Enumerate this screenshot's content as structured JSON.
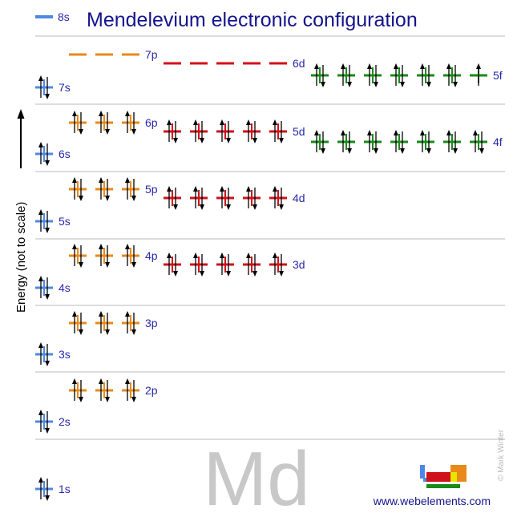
{
  "title": "Mendelevium electronic configuration",
  "y_axis_label": "Energy (not to scale)",
  "element_symbol": "Md",
  "website": "www.webelements.com",
  "copyright": "© Mark Winter",
  "legend": {
    "label": "8s",
    "filled": false
  },
  "colors": {
    "s": "#4d88e6",
    "p": "#e88a1a",
    "d": "#d0101a",
    "f": "#1a8a1a",
    "label": "#2828aa",
    "title": "#14148c",
    "separator": "#bbbbbb",
    "symbol": "#c8c8c8"
  },
  "subshells": [
    {
      "name": "1s",
      "type": "s",
      "orbitals": 1,
      "electrons": 2
    },
    {
      "name": "2s",
      "type": "s",
      "orbitals": 1,
      "electrons": 2
    },
    {
      "name": "2p",
      "type": "p",
      "orbitals": 3,
      "electrons": 6
    },
    {
      "name": "3s",
      "type": "s",
      "orbitals": 1,
      "electrons": 2
    },
    {
      "name": "3p",
      "type": "p",
      "orbitals": 3,
      "electrons": 6
    },
    {
      "name": "4s",
      "type": "s",
      "orbitals": 1,
      "electrons": 2
    },
    {
      "name": "3d",
      "type": "d",
      "orbitals": 5,
      "electrons": 10
    },
    {
      "name": "4p",
      "type": "p",
      "orbitals": 3,
      "electrons": 6
    },
    {
      "name": "5s",
      "type": "s",
      "orbitals": 1,
      "electrons": 2
    },
    {
      "name": "4d",
      "type": "d",
      "orbitals": 5,
      "electrons": 10
    },
    {
      "name": "5p",
      "type": "p",
      "orbitals": 3,
      "electrons": 6
    },
    {
      "name": "6s",
      "type": "s",
      "orbitals": 1,
      "electrons": 2
    },
    {
      "name": "4f",
      "type": "f",
      "orbitals": 7,
      "electrons": 14
    },
    {
      "name": "5d",
      "type": "d",
      "orbitals": 5,
      "electrons": 10
    },
    {
      "name": "6p",
      "type": "p",
      "orbitals": 3,
      "electrons": 6
    },
    {
      "name": "7s",
      "type": "s",
      "orbitals": 1,
      "electrons": 2
    },
    {
      "name": "5f",
      "type": "f",
      "orbitals": 7,
      "electrons": 13
    },
    {
      "name": "6d",
      "type": "d",
      "orbitals": 5,
      "electrons": 0
    },
    {
      "name": "7p",
      "type": "p",
      "orbitals": 3,
      "electrons": 0
    }
  ]
}
